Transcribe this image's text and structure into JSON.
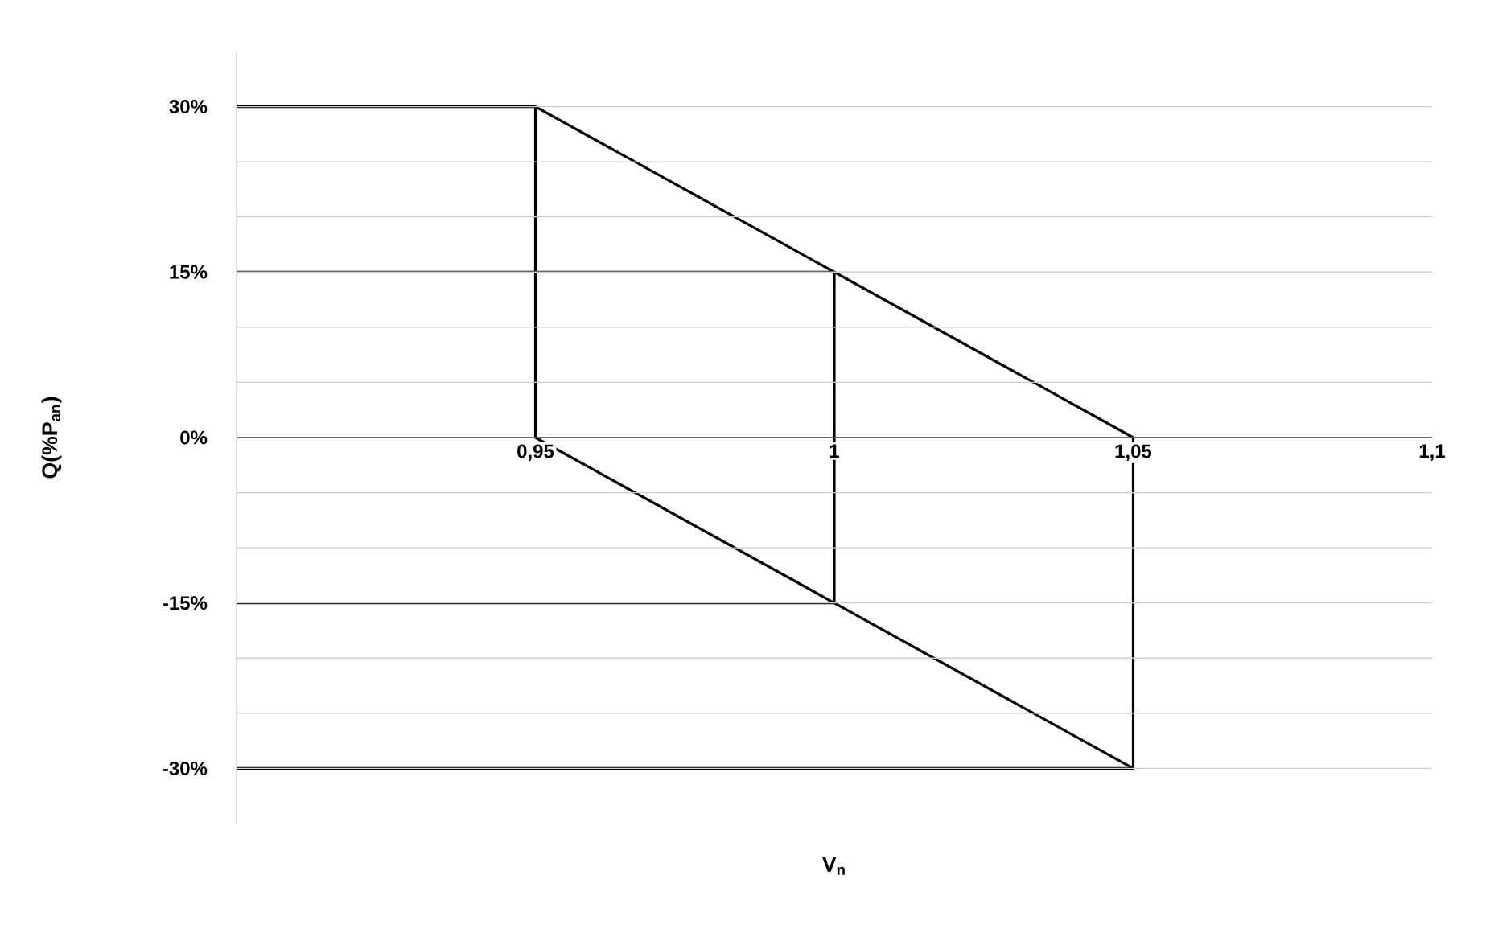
{
  "chart_data": {
    "type": "line",
    "xlabel": "V$_{n}$",
    "ylabel": "Q(%P$_{an}$)",
    "xlim": [
      0.9,
      1.1
    ],
    "ylim": [
      -35,
      35
    ],
    "xticks": [
      {
        "value": 0.95,
        "label": "0,95"
      },
      {
        "value": 1,
        "label": "1"
      },
      {
        "value": 1.05,
        "label": "1,05"
      },
      {
        "value": 1.1,
        "label": "1,1"
      }
    ],
    "yticks": [
      {
        "value": -30,
        "label": "-30%"
      },
      {
        "value": -25,
        "label": null
      },
      {
        "value": -20,
        "label": null
      },
      {
        "value": -15,
        "label": "-15%"
      },
      {
        "value": -10,
        "label": null
      },
      {
        "value": -5,
        "label": null
      },
      {
        "value": 0,
        "label": "0%"
      },
      {
        "value": 5,
        "label": null
      },
      {
        "value": 10,
        "label": null
      },
      {
        "value": 15,
        "label": "15%"
      },
      {
        "value": 20,
        "label": null
      },
      {
        "value": 25,
        "label": null
      },
      {
        "value": 30,
        "label": "30%"
      }
    ],
    "grid": "y",
    "marker": "none",
    "series": [
      {
        "color": "#000000",
        "x": [
          0.95,
          1.05
        ],
        "values": [
          30,
          0
        ]
      },
      {
        "color": "#000000",
        "x": [
          0.95,
          1.05
        ],
        "values": [
          0,
          -30
        ]
      },
      {
        "color": "#000000",
        "x": [
          0.9,
          0.95,
          0.95
        ],
        "values": [
          30,
          30,
          0
        ]
      },
      {
        "color": "#000000",
        "x": [
          0.9,
          1,
          1,
          0.9
        ],
        "values": [
          15,
          15,
          -15,
          -15
        ]
      },
      {
        "color": "#000000",
        "x": [
          0.9,
          1.05,
          1.05
        ],
        "values": [
          -30,
          -30,
          0
        ]
      }
    ]
  }
}
